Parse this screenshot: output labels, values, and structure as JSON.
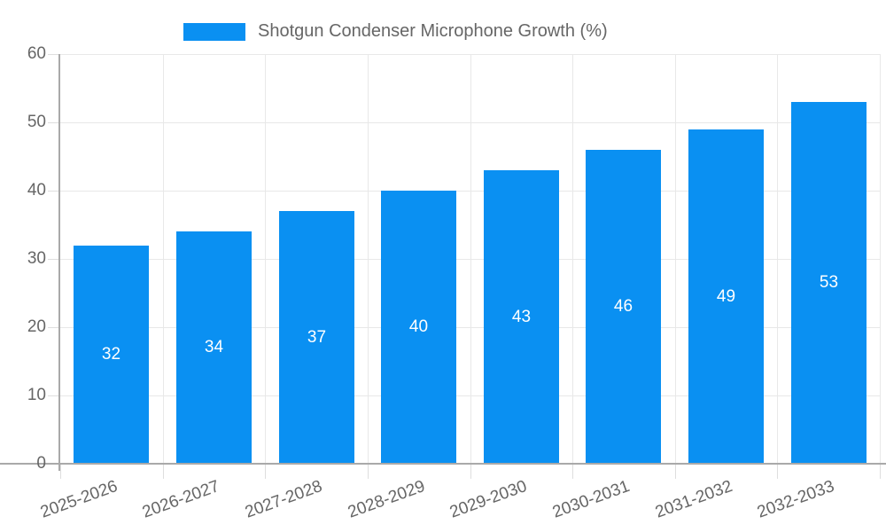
{
  "legend": {
    "label": "Shotgun Condenser Microphone Growth (%)"
  },
  "chart_data": {
    "type": "bar",
    "title": "Shotgun Condenser Microphone Growth (%)",
    "categories": [
      "2025-2026",
      "2026-2027",
      "2027-2028",
      "2028-2029",
      "2029-2030",
      "2030-2031",
      "2031-2032",
      "2032-2033"
    ],
    "values": [
      32,
      34,
      37,
      40,
      43,
      46,
      49,
      53
    ],
    "xlabel": "",
    "ylabel": "",
    "ylim": [
      0,
      60
    ],
    "yticks": [
      0,
      10,
      20,
      30,
      40,
      50,
      60
    ],
    "grid": true,
    "legend_position": "top-center",
    "x_label_rotation_deg": -20,
    "colors": {
      "bar": "#0a90f2",
      "value_label": "#ffffff",
      "tick_label": "#666666",
      "grid_line": "#e8e8e8",
      "axis_line": "#a9a9a9",
      "tick_mark": "#dedede"
    }
  }
}
